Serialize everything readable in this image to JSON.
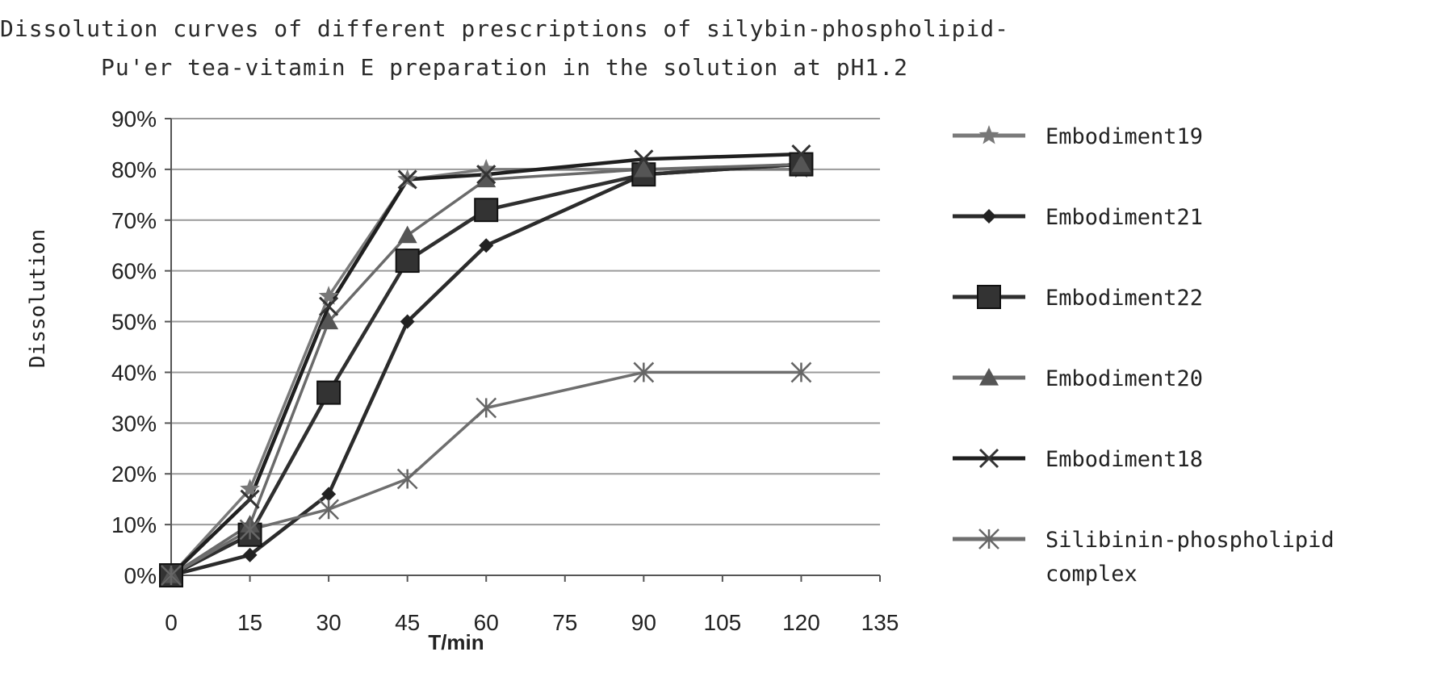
{
  "chart_data": {
    "type": "line",
    "title_lines": [
      "Dissolution curves of different prescriptions of silybin-phospholipid-",
      "Pu'er tea-vitamin E preparation in the solution at pH1.2"
    ],
    "xlabel": "T/min",
    "ylabel": "Dissolution",
    "x_ticks": [
      "0",
      "15",
      "30",
      "45",
      "60",
      "75",
      "90",
      "105",
      "120",
      "135"
    ],
    "y_ticks": [
      "0%",
      "10%",
      "20%",
      "30%",
      "40%",
      "50%",
      "60%",
      "70%",
      "80%",
      "90%"
    ],
    "xlim": [
      0,
      135
    ],
    "ylim": [
      0,
      90
    ],
    "grid": true,
    "legend_position": "right",
    "x": [
      0,
      15,
      30,
      45,
      60,
      90,
      120
    ],
    "series": [
      {
        "name": "Embodiment19",
        "marker": "star",
        "color": "#7a7a7a",
        "values": [
          0,
          17,
          55,
          78,
          80,
          80,
          80
        ]
      },
      {
        "name": "Embodiment21",
        "marker": "diamond",
        "color": "#2b2b2b",
        "values": [
          0,
          4,
          16,
          50,
          65,
          79,
          81
        ]
      },
      {
        "name": "Embodiment22",
        "marker": "square",
        "color": "#2f2f2f",
        "values": [
          0,
          8,
          36,
          62,
          72,
          79,
          81
        ]
      },
      {
        "name": "Embodiment20",
        "marker": "triangle",
        "color": "#6a6a6a",
        "values": [
          0,
          10,
          50,
          67,
          78,
          80,
          81
        ]
      },
      {
        "name": "Embodiment18",
        "marker": "x",
        "color": "#1f1f1f",
        "values": [
          0,
          15,
          53,
          78,
          79,
          82,
          83
        ]
      },
      {
        "name": "Silibinin-phospholipid complex",
        "legend_lines": [
          "Silibinin-phospholipid",
          "complex"
        ],
        "marker": "asterisk",
        "color": "#6e6e6e",
        "values": [
          0,
          9,
          13,
          19,
          33,
          40,
          40
        ]
      }
    ]
  }
}
